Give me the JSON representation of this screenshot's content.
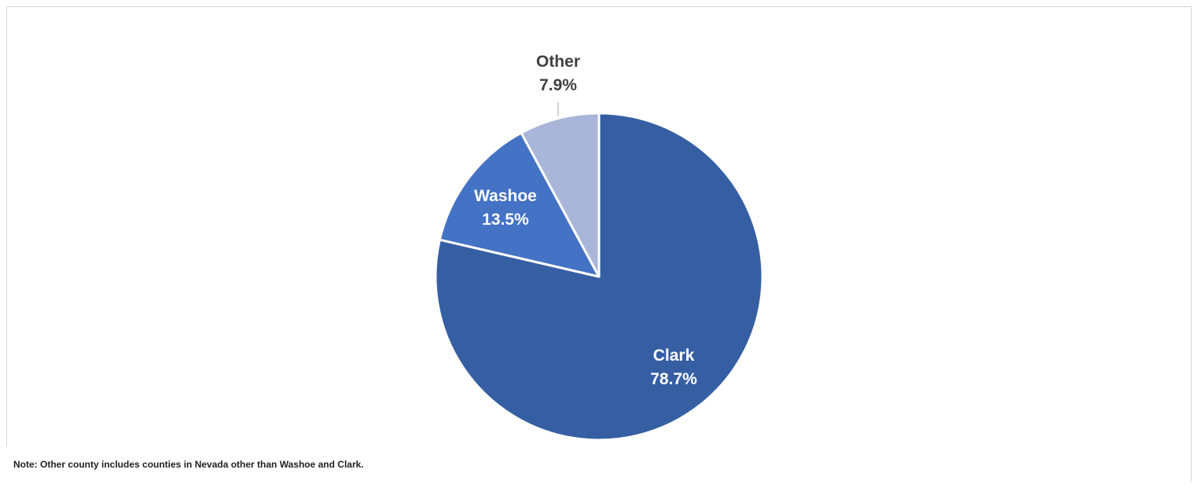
{
  "chart_data": {
    "type": "pie",
    "title": "",
    "start_angle_deg": 0,
    "direction": "clockwise",
    "slices": [
      {
        "label": "Clark",
        "value": 78.7,
        "display": "78.7%",
        "color": "#365fa3",
        "label_color": "#ffffff"
      },
      {
        "label": "Washoe",
        "value": 13.5,
        "display": "13.5%",
        "color": "#4472c4",
        "label_color": "#ffffff"
      },
      {
        "label": "Other",
        "value": 7.9,
        "display": "7.9%",
        "color": "#a9b6d9",
        "label_color": "#404040"
      }
    ]
  },
  "note": "Note: Other county includes counties in Nevada other than Washoe and Clark."
}
